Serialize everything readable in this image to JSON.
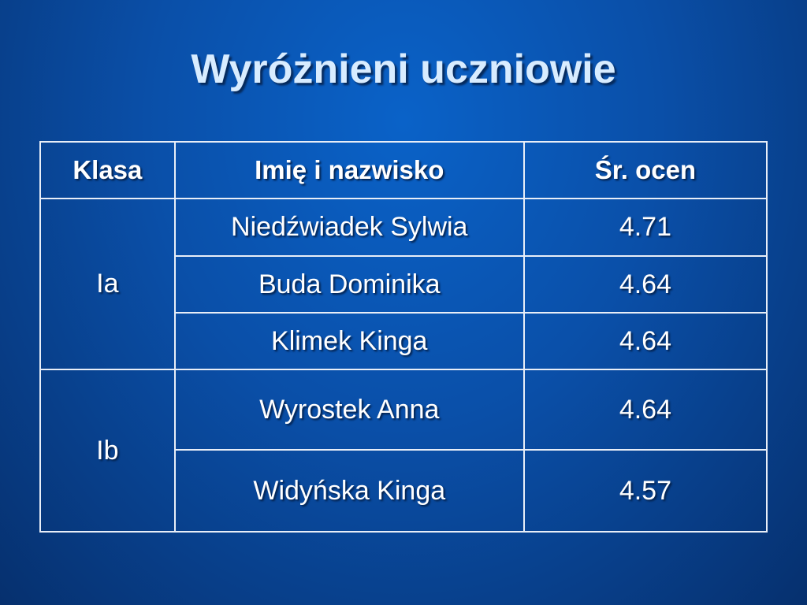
{
  "title": "Wyróżnieni uczniowie",
  "table": {
    "header": [
      "Klasa",
      "Imię i nazwisko",
      "Śr. ocen"
    ],
    "groups": [
      {
        "class": "Ia",
        "rows": [
          [
            "Niedźwiadek Sylwia",
            4.71
          ],
          [
            "Buda Dominika",
            4.64
          ],
          [
            "Klimek Kinga",
            4.64
          ]
        ]
      },
      {
        "class": "Ib",
        "rows": [
          [
            "Wyrostek Anna",
            4.64
          ],
          [
            "Widyńska Kinga",
            4.57
          ]
        ]
      }
    ]
  }
}
